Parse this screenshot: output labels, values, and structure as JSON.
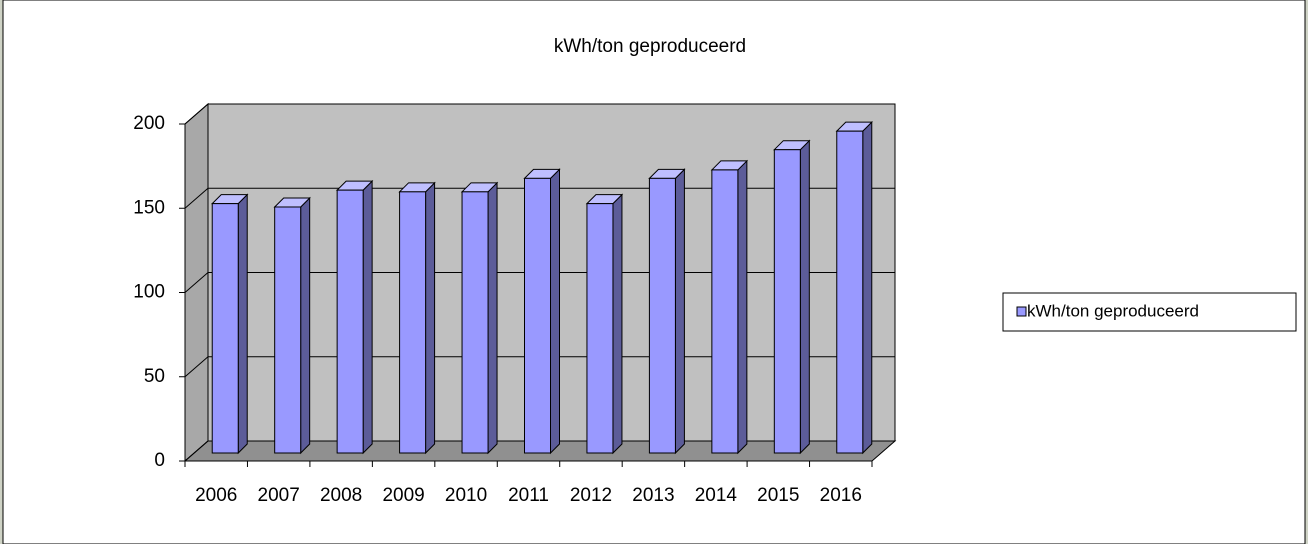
{
  "chart_data": {
    "type": "bar3d",
    "title": "kWh/ton geproduceerd",
    "categories": [
      "2006",
      "2007",
      "2008",
      "2009",
      "2010",
      "2011",
      "2012",
      "2013",
      "2014",
      "2015",
      "2016"
    ],
    "series": [
      {
        "name": "kWh/ton geproduceerd",
        "color": "#9999ff",
        "values": [
          148,
          146,
          156,
          155,
          155,
          163,
          148,
          163,
          168,
          180,
          191
        ]
      }
    ],
    "ylim": [
      0,
      200
    ],
    "yticks": [
      0,
      50,
      100,
      150,
      200
    ],
    "grid": true,
    "legend": "right"
  }
}
